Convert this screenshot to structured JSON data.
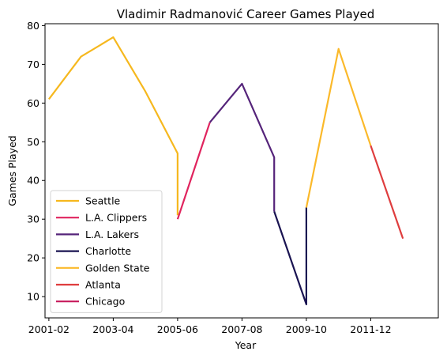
{
  "chart_data": {
    "type": "line",
    "title": "Vladimir Radmanović Career Games Played",
    "xlabel": "Year",
    "ylabel": "Games Played",
    "ylim": [
      4.5,
      80.5
    ],
    "xlim": [
      -0.12,
      12.1
    ],
    "x_ticks": [
      "2001-02",
      "2003-04",
      "2005-06",
      "2007-08",
      "2009-10",
      "2011-12"
    ],
    "y_ticks": [
      10,
      20,
      30,
      40,
      50,
      60,
      70,
      80
    ],
    "legend_position": "lower-left",
    "grid": false,
    "series": [
      {
        "name": "Seattle",
        "color": "#f6b81e",
        "points": [
          [
            "2001-02",
            61
          ],
          [
            "2002-03",
            72
          ],
          [
            "2003-04",
            77
          ],
          [
            "2004-05",
            63
          ],
          [
            "2005-06",
            47
          ],
          [
            "2005-06",
            31
          ]
        ]
      },
      {
        "name": "L.A. Clippers",
        "color": "#e0245e",
        "points": [
          [
            "2005-06",
            30
          ],
          [
            "2006-07",
            55
          ]
        ]
      },
      {
        "name": "L.A. Lakers",
        "color": "#55247a",
        "points": [
          [
            "2006-07",
            55
          ],
          [
            "2007-08",
            65
          ],
          [
            "2008-09",
            46
          ],
          [
            "2008-09",
            32
          ]
        ]
      },
      {
        "name": "Charlotte",
        "color": "#1a1452",
        "points": [
          [
            "2008-09",
            32
          ],
          [
            "2009-10",
            8
          ],
          [
            "2009-10",
            33
          ]
        ]
      },
      {
        "name": "Golden State",
        "color": "#fbb92a",
        "points": [
          [
            "2009-10",
            33
          ],
          [
            "2010-11",
            74
          ],
          [
            "2011-12",
            49
          ]
        ]
      },
      {
        "name": "Atlanta",
        "color": "#df3d3e",
        "points": [
          [
            "2011-12",
            49
          ],
          [
            "2012-13",
            25
          ]
        ]
      },
      {
        "name": "Chicago",
        "color": "#c71a5b",
        "points": []
      }
    ]
  }
}
